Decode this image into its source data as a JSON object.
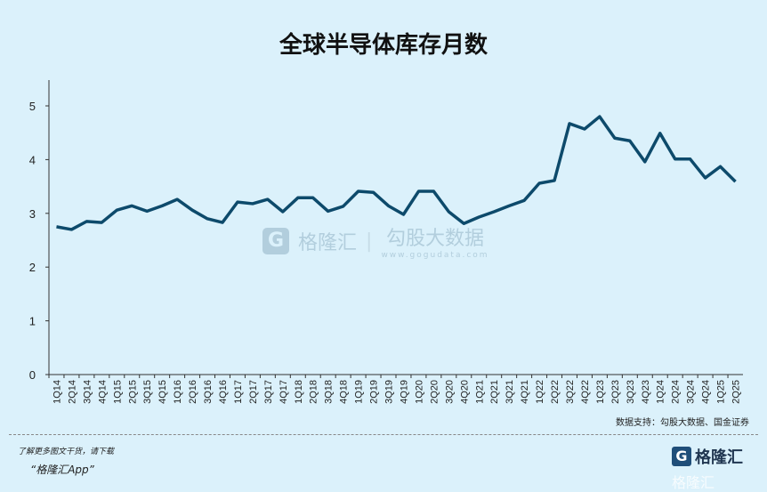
{
  "chart_data": {
    "type": "line",
    "title": "全球半导体库存月数",
    "xlabel": "",
    "ylabel": "",
    "ylim": [
      0,
      5
    ],
    "yticks": [
      0,
      1,
      2,
      3,
      4,
      5
    ],
    "grid": false,
    "categories": [
      "1Q14",
      "2Q14",
      "3Q14",
      "4Q14",
      "1Q15",
      "2Q15",
      "3Q15",
      "4Q15",
      "1Q16",
      "2Q16",
      "3Q16",
      "4Q16",
      "1Q17",
      "2Q17",
      "3Q17",
      "4Q17",
      "1Q18",
      "2Q18",
      "3Q18",
      "4Q18",
      "1Q19",
      "2Q19",
      "3Q19",
      "4Q19",
      "1Q20",
      "2Q20",
      "3Q20",
      "4Q20",
      "1Q21",
      "2Q21",
      "3Q21",
      "4Q21",
      "1Q22",
      "2Q22",
      "3Q22",
      "4Q22",
      "1Q23",
      "2Q23",
      "3Q23",
      "4Q23",
      "1Q24",
      "2Q24",
      "3Q24",
      "4Q24",
      "1Q25",
      "2Q25"
    ],
    "values": [
      2.75,
      2.7,
      2.85,
      2.83,
      3.06,
      3.14,
      3.04,
      3.14,
      3.26,
      3.06,
      2.9,
      2.83,
      3.21,
      3.18,
      3.26,
      3.03,
      3.29,
      3.29,
      3.04,
      3.13,
      3.41,
      3.39,
      3.14,
      2.98,
      3.41,
      3.41,
      3.03,
      2.81,
      2.93,
      3.03,
      3.14,
      3.24,
      3.56,
      3.61,
      4.67,
      4.57,
      4.8,
      4.4,
      4.35,
      3.96,
      4.49,
      4.01,
      4.01,
      3.66,
      3.87,
      3.59
    ],
    "line_color": "#0d4a6b"
  },
  "source": "数据支持：勾股大数据、国金证券",
  "footer": {
    "line1": "了解更多图文干货，请下载",
    "line2": "“格隆汇App”"
  },
  "watermark": {
    "brand1": "格隆汇",
    "brand2": "勾股大数据",
    "url": "www.gogudata.com"
  },
  "logo": {
    "text": "格隆汇"
  }
}
